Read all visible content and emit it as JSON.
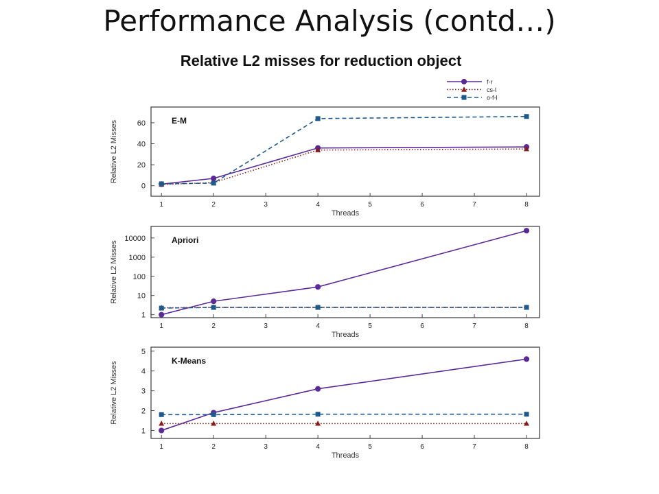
{
  "slide": {
    "title": "Performance Analysis (contd…)",
    "subtitle": "Relative L2 misses for reduction object"
  },
  "legend": {
    "placement": "top-right",
    "entries": [
      {
        "name": "f-r",
        "color": "#5b2a99",
        "style": "solid",
        "marker": "circle"
      },
      {
        "name": "cs-l",
        "color": "#8b1a1a",
        "style": "dotted",
        "marker": "triangle"
      },
      {
        "name": "o-f-l",
        "color": "#1f5a8c",
        "style": "dashed",
        "marker": "square"
      }
    ]
  },
  "chart_data": [
    {
      "type": "line",
      "title": "E-M",
      "xlabel": "Threads",
      "ylabel": "Relative L2 Misses",
      "x": [
        1,
        2,
        4,
        8
      ],
      "xticks": [
        1,
        2,
        3,
        4,
        5,
        6,
        7,
        8
      ],
      "yscale": "linear",
      "ylim": [
        -10,
        75
      ],
      "yticks": [
        0,
        20,
        40,
        60
      ],
      "yticklabels": [
        "0",
        "20",
        "40",
        "60"
      ],
      "series": [
        {
          "name": "f-r",
          "values": [
            1.5,
            7,
            36,
            37
          ]
        },
        {
          "name": "cs-l",
          "values": [
            1.2,
            3,
            34,
            35
          ]
        },
        {
          "name": "o-f-l",
          "values": [
            1.8,
            2.5,
            64,
            66
          ]
        }
      ]
    },
    {
      "type": "line",
      "title": "Apriori",
      "xlabel": "Threads",
      "ylabel": "Relative L2 Misses",
      "x": [
        1,
        2,
        4,
        8
      ],
      "xticks": [
        1,
        2,
        3,
        4,
        5,
        6,
        7,
        8
      ],
      "yscale": "log",
      "ylim": [
        0.7,
        40000
      ],
      "yticks": [
        1,
        10,
        100,
        1000,
        10000
      ],
      "yticklabels": [
        "1",
        "10",
        "100",
        "1000",
        "10000"
      ],
      "series": [
        {
          "name": "f-r",
          "values": [
            1,
            5,
            28,
            24000
          ]
        },
        {
          "name": "cs-l",
          "values": [
            2.3,
            2.4,
            2.4,
            2.4
          ]
        },
        {
          "name": "o-f-l",
          "values": [
            2.2,
            2.4,
            2.4,
            2.4
          ]
        }
      ]
    },
    {
      "type": "line",
      "title": "K-Means",
      "xlabel": "Threads",
      "ylabel": "Relative L2 Misses",
      "x": [
        1,
        2,
        4,
        8
      ],
      "xticks": [
        1,
        2,
        3,
        4,
        5,
        6,
        7,
        8
      ],
      "yscale": "linear",
      "ylim": [
        0.6,
        5.2
      ],
      "yticks": [
        1,
        2,
        3,
        4,
        5
      ],
      "yticklabels": [
        "1",
        "2",
        "3",
        "4",
        "5"
      ],
      "series": [
        {
          "name": "f-r",
          "values": [
            1,
            1.9,
            3.1,
            4.6
          ]
        },
        {
          "name": "cs-l",
          "values": [
            1.35,
            1.35,
            1.35,
            1.35
          ]
        },
        {
          "name": "o-f-l",
          "values": [
            1.8,
            1.8,
            1.82,
            1.82
          ]
        }
      ]
    }
  ]
}
